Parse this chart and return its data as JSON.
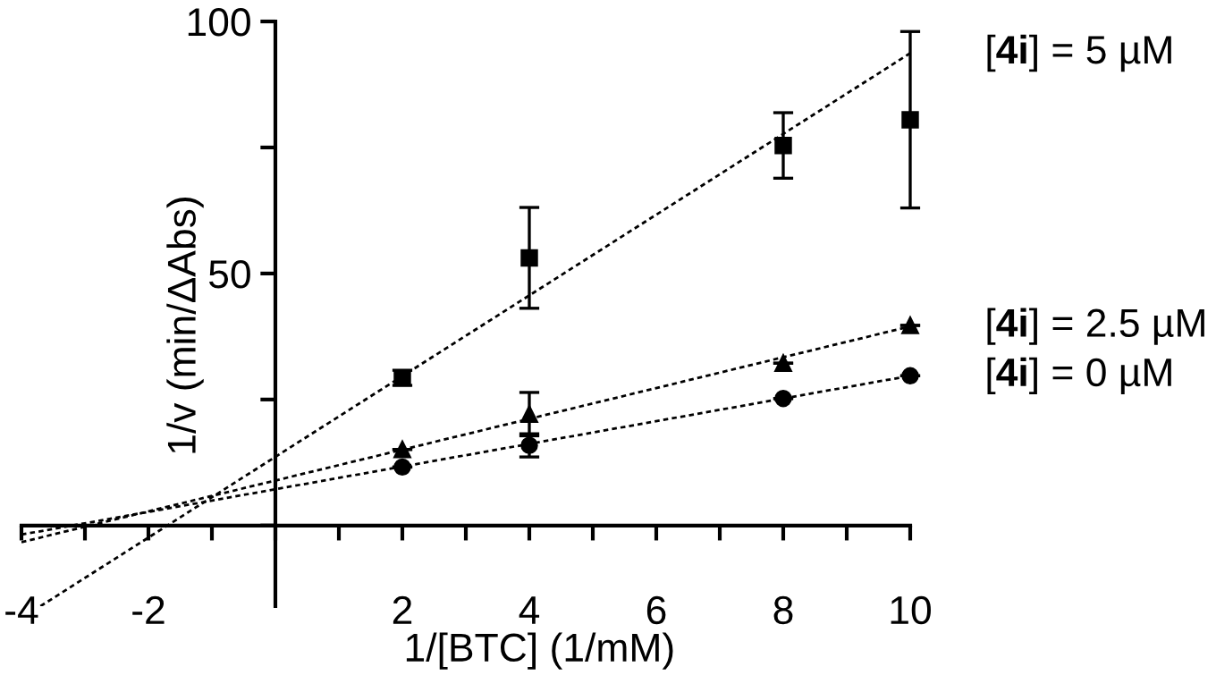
{
  "chart_data": {
    "type": "scatter",
    "xlabel": "1/[BTC] (1/mM)",
    "ylabel": "1/v (min/ΔAbs)",
    "xlim": [
      -4,
      10
    ],
    "ylim": [
      -16,
      100
    ],
    "xticks": [
      -4,
      {
        "value": -3,
        "label": null
      },
      -2,
      {
        "value": -1,
        "label": null
      },
      {
        "value": 0,
        "label": null
      },
      {
        "value": 1,
        "label": null
      },
      2,
      {
        "value": 3,
        "label": null
      },
      4,
      {
        "value": 5,
        "label": null
      },
      6,
      {
        "value": 7,
        "label": null
      },
      8,
      {
        "value": 9,
        "label": null
      },
      10
    ],
    "yticks": [
      {
        "value": 0,
        "label": null
      },
      {
        "value": 25,
        "label": null
      },
      50,
      {
        "value": 75,
        "label": null
      },
      100
    ],
    "grid": false,
    "legend": false,
    "color": "#000000",
    "series": [
      {
        "marker": "square",
        "x": [
          2,
          4,
          8,
          10
        ],
        "values": [
          29.3,
          53.1,
          75.4,
          80.5
        ],
        "errors": [
          1.5,
          10,
          6.5,
          17.5
        ]
      },
      {
        "marker": "triangle",
        "x": [
          2,
          4,
          8,
          10
        ],
        "values": [
          15.1,
          22.1,
          32.2,
          39.7
        ],
        "errors": [
          null,
          4.3,
          null,
          null
        ]
      },
      {
        "marker": "circle",
        "x": [
          2,
          4,
          8,
          10
        ],
        "values": [
          11.6,
          15.9,
          25.2,
          29.7
        ],
        "errors": [
          null,
          2.3,
          null,
          null
        ]
      },
      {
        "type": "line",
        "name": "[4i] = 5 µM",
        "line_style": "dashed",
        "marker": "none",
        "x": [
          -3.7,
          10
        ],
        "values": [
          -16,
          93.7
        ]
      },
      {
        "type": "line",
        "name": "[4i] = 2.5 µM",
        "line_style": "dashed",
        "marker": "none",
        "x": [
          -4,
          10
        ],
        "values": [
          -3.3,
          39.5
        ]
      },
      {
        "type": "line",
        "name": "[4i] = 0 µM",
        "line_style": "dashed",
        "marker": "none",
        "x": [
          -4,
          10
        ],
        "values": [
          -1.8,
          29.7
        ]
      }
    ]
  }
}
